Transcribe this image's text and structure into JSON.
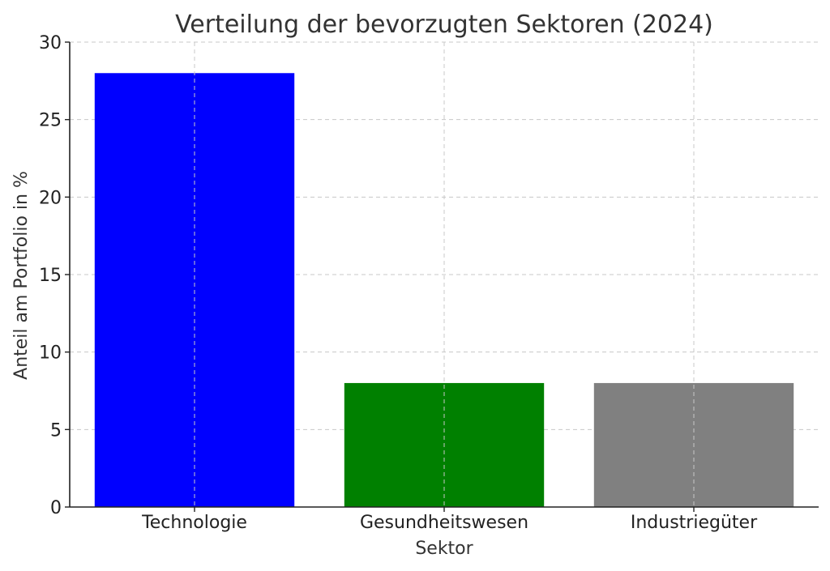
{
  "chart_data": {
    "type": "bar",
    "title": "Verteilung der bevorzugten Sektoren (2024)",
    "xlabel": "Sektor",
    "ylabel": "Anteil am Portfolio in %",
    "categories": [
      "Technologie",
      "Gesundheitswesen",
      "Industriegüter"
    ],
    "values": [
      28,
      8,
      8
    ],
    "colors": [
      "#0000ff",
      "#008000",
      "#808080"
    ],
    "ylim": [
      0,
      30
    ],
    "yticks": [
      0,
      5,
      10,
      15,
      20,
      25,
      30
    ],
    "grid": true,
    "legend": "none"
  }
}
